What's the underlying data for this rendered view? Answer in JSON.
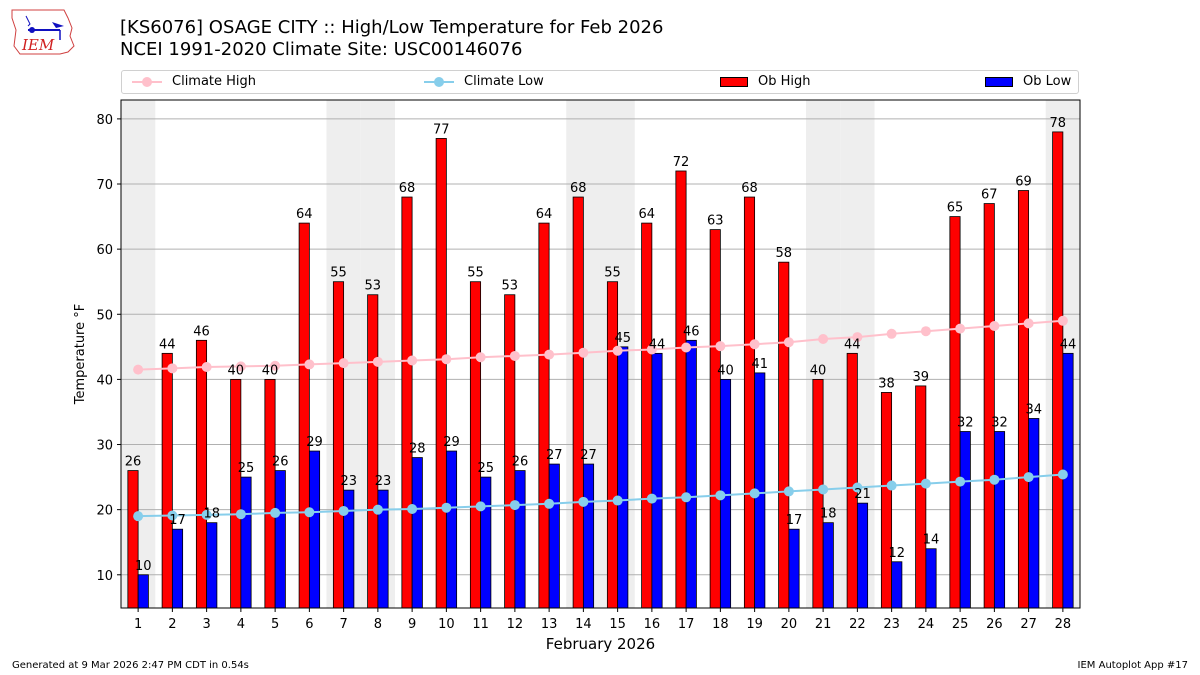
{
  "header": {
    "title_line1": "[KS6076] OSAGE CITY :: High/Low Temperature for Feb 2026",
    "title_line2": "NCEI 1991-2020 Climate Site: USC00146076",
    "logo_text": "IEM"
  },
  "footer": {
    "generated": "Generated at 9 Mar 2026 2:47 PM CDT in 0.54s",
    "app": "IEM Autoplot App #17"
  },
  "colors": {
    "ob_high": "#ff0000",
    "ob_low": "#0000ff",
    "climate_high": "#ffc0cb",
    "climate_low": "#87ceeb",
    "weekend_band": "#eeeeee",
    "grid": "#b0b0b0"
  },
  "chart_data": {
    "type": "bar",
    "title": "[KS6076] OSAGE CITY :: High/Low Temperature for Feb 2026",
    "subtitle": "NCEI 1991-2020 Climate Site: USC00146076",
    "xlabel": "February 2026",
    "ylabel": "Temperature °F",
    "ylim": [
      4.9,
      82.9
    ],
    "xlim": [
      0.5,
      28.5
    ],
    "yticks": [
      10,
      20,
      30,
      40,
      50,
      60,
      70,
      80
    ],
    "grid": true,
    "legend_position": "top",
    "legend": [
      "Climate High",
      "Climate Low",
      "Ob High",
      "Ob Low"
    ],
    "categories": [
      1,
      2,
      3,
      4,
      5,
      6,
      7,
      8,
      9,
      10,
      11,
      12,
      13,
      14,
      15,
      16,
      17,
      18,
      19,
      20,
      21,
      22,
      23,
      24,
      25,
      26,
      27,
      28
    ],
    "weekend_days": [
      1,
      7,
      8,
      14,
      15,
      21,
      22,
      28
    ],
    "series": [
      {
        "name": "Ob High",
        "kind": "bar",
        "values": [
          26,
          44,
          46,
          40,
          40,
          64,
          55,
          53,
          68,
          77,
          55,
          53,
          64,
          68,
          55,
          64,
          72,
          63,
          68,
          58,
          40,
          44,
          38,
          39,
          65,
          67,
          69,
          78
        ]
      },
      {
        "name": "Ob Low",
        "kind": "bar",
        "values": [
          10,
          17,
          18,
          25,
          26,
          29,
          23,
          23,
          28,
          29,
          25,
          26,
          27,
          27,
          45,
          44,
          46,
          40,
          41,
          17,
          18,
          21,
          12,
          14,
          32,
          32,
          34,
          44
        ]
      },
      {
        "name": "Climate High",
        "kind": "line",
        "values": [
          41.5,
          41.7,
          41.9,
          42.0,
          42.1,
          42.3,
          42.5,
          42.7,
          42.9,
          43.1,
          43.4,
          43.6,
          43.8,
          44.1,
          44.4,
          44.6,
          44.9,
          45.1,
          45.4,
          45.7,
          46.2,
          46.5,
          47.0,
          47.4,
          47.8,
          48.2,
          48.6,
          49.0
        ]
      },
      {
        "name": "Climate Low",
        "kind": "line",
        "values": [
          19.0,
          19.1,
          19.2,
          19.3,
          19.5,
          19.6,
          19.8,
          20.0,
          20.1,
          20.3,
          20.5,
          20.7,
          20.9,
          21.2,
          21.4,
          21.7,
          21.9,
          22.2,
          22.5,
          22.8,
          23.1,
          23.4,
          23.7,
          24.0,
          24.3,
          24.6,
          25.0,
          25.4
        ]
      }
    ]
  }
}
